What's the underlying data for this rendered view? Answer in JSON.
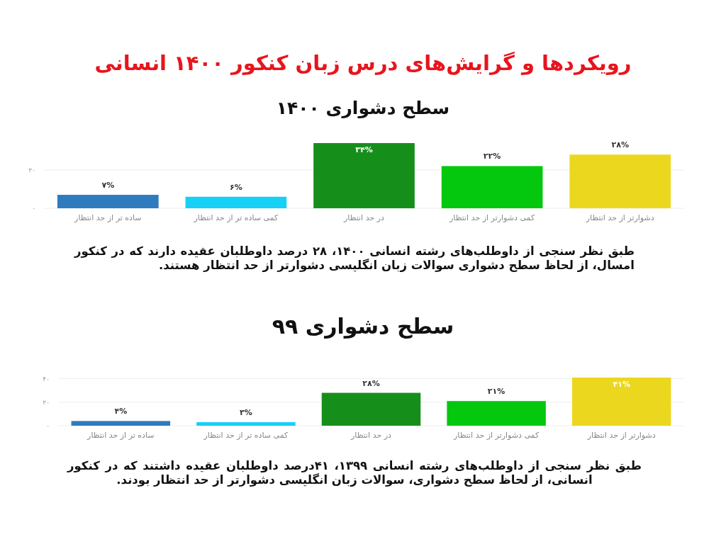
{
  "chart_data": [
    {
      "type": "bar",
      "title": "رویکردها و گرایش‌های درس زبان کنکور ۱۴۰۰ انسانی",
      "subtitle": "سطح دشواری ۱۴۰۰",
      "categories": [
        "ساده تر از حد انتظار",
        "کمی ساده تر از حد انتظار",
        "در حد انتظار",
        "کمی دشوارتر از حد انتظار",
        "دشوارتر از حد انتظار"
      ],
      "values": [
        7,
        6,
        34,
        22,
        28
      ],
      "value_labels": [
        "۷%",
        "۶%",
        "۳۴%",
        "۲۲%",
        "۲۸%"
      ],
      "colors": [
        "#2e7bbd",
        "#16d0f5",
        "#168f1a",
        "#04c80e",
        "#ebd81e"
      ],
      "ylim": [
        0,
        34
      ],
      "yticks": [
        {
          "value": 0,
          "label": "۰"
        },
        {
          "value": 20,
          "label": "۲۰"
        }
      ],
      "grid": "y",
      "annotations": [
        "طبق نظر سنجی از داوطلب‌های رشته انسانی ۱۴۰۰، ۲۸ درصد داوطلبان عقیده دارند که  در کنکور  امسال، از لحاظ سطح دشواری سوالات زبان انگلیسی  دشوارتر از حد انتظار هستند."
      ]
    },
    {
      "type": "bar",
      "title": "سطح دشواری ۹۹",
      "categories": [
        "ساده تر از حد انتظار",
        "کمی ساده تر از حد انتظار",
        "در حد انتظار",
        "کمی دشوارتر از حد انتظار",
        "دشوارتر از حد انتظار"
      ],
      "values": [
        4,
        3,
        28,
        21,
        41
      ],
      "value_labels": [
        "۴%",
        "۳%",
        "۲۸%",
        "۲۱%",
        "۴۱%"
      ],
      "colors": [
        "#2e7bbd",
        "#16d0f5",
        "#168f1a",
        "#04c80e",
        "#ebd81e"
      ],
      "ylim": [
        0,
        41
      ],
      "yticks": [
        {
          "value": 0,
          "label": "۰"
        },
        {
          "value": 20,
          "label": "۲۰"
        },
        {
          "value": 40,
          "label": "۴۰"
        }
      ],
      "grid": "y",
      "annotations": [
        "طبق نظر سنجی از داوطلب‌های رشته انسانی ۱۳۹۹، ۴۱درصد داوطلبان عقیده داشتند که  در کنکور انسانی، از لحاظ سطح دشواری، سوالات زبان انگلیسی  دشوارتر از حد انتظار بودند."
      ]
    }
  ]
}
